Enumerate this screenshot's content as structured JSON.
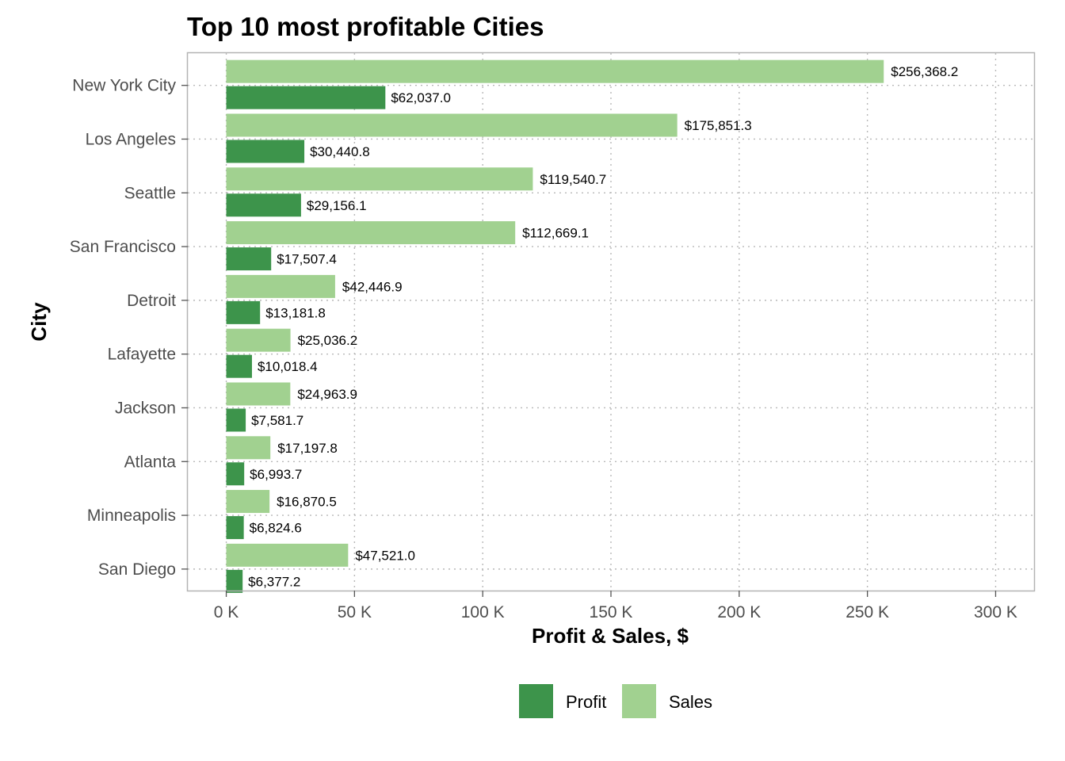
{
  "chart_data": {
    "type": "bar",
    "orientation": "horizontal",
    "title": "Top 10 most profitable Cities",
    "xlabel": "Profit & Sales, $",
    "ylabel": "City",
    "categories": [
      "New York City",
      "Los Angeles",
      "Seattle",
      "San Francisco",
      "Detroit",
      "Lafayette",
      "Jackson",
      "Atlanta",
      "Minneapolis",
      "San Diego"
    ],
    "series": [
      {
        "name": "Profit",
        "color": "#3d944b",
        "values": [
          62037.0,
          30440.8,
          29156.1,
          17507.4,
          13181.8,
          10018.4,
          7581.7,
          6993.7,
          6824.6,
          6377.2
        ],
        "labels": [
          "$62,037.0",
          "$30,440.8",
          "$29,156.1",
          "$17,507.4",
          "$13,181.8",
          "$10,018.4",
          "$7,581.7",
          "$6,993.7",
          "$6,824.6",
          "$6,377.2"
        ]
      },
      {
        "name": "Sales",
        "color": "#a1d190",
        "values": [
          256368.2,
          175851.3,
          119540.7,
          112669.1,
          42446.9,
          25036.2,
          24963.9,
          17197.8,
          16870.5,
          47521.0
        ],
        "labels": [
          "$256,368.2",
          "$175,851.3",
          "$119,540.7",
          "$112,669.1",
          "$42,446.9",
          "$25,036.2",
          "$24,963.9",
          "$17,197.8",
          "$16,870.5",
          "$47,521.0"
        ]
      }
    ],
    "xlim": [
      -15000,
      315000
    ],
    "x_ticks": [
      0,
      50000,
      100000,
      150000,
      200000,
      250000,
      300000
    ],
    "x_tick_labels": [
      "0 K",
      "50 K",
      "100 K",
      "150 K",
      "200 K",
      "250 K",
      "300 K"
    ],
    "grid": true,
    "legend_position": "bottom"
  }
}
